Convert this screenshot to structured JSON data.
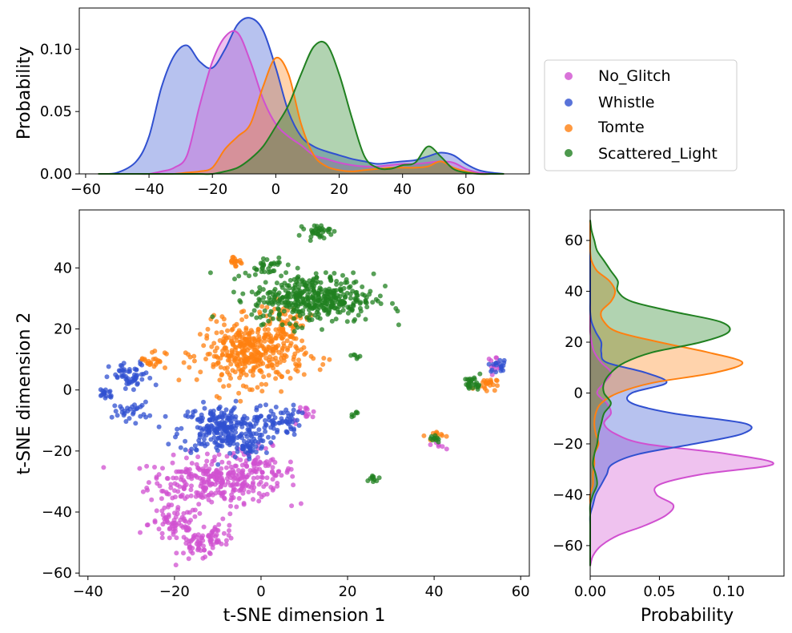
{
  "chart_data": [
    {
      "panel": "scatter",
      "type": "scatter",
      "xlabel": "t-SNE dimension 1",
      "ylabel": "t-SNE dimension 2",
      "xlim": [
        -42,
        62
      ],
      "ylim": [
        -61,
        59
      ],
      "xticks": [
        -40,
        -20,
        0,
        20,
        40,
        60
      ],
      "yticks": [
        -60,
        -40,
        -20,
        0,
        20,
        40
      ],
      "series": [
        {
          "name": "No_Glitch",
          "color": "#d050d0",
          "clusters": [
            {
              "cx": -12,
              "cy": -30,
              "sx": 7,
              "sy": 4,
              "n": 240
            },
            {
              "cx": -2,
              "cy": -27,
              "sx": 5,
              "sy": 4,
              "n": 110
            },
            {
              "cx": -20,
              "cy": -44,
              "sx": 3,
              "sy": 3,
              "n": 70
            },
            {
              "cx": -14,
              "cy": -51,
              "sx": 2.5,
              "sy": 2.5,
              "n": 50
            },
            {
              "cx": -10,
              "cy": -47,
              "sx": 2,
              "sy": 2,
              "n": 30
            },
            {
              "cx": 10,
              "cy": -8,
              "sx": 1.5,
              "sy": 1.5,
              "n": 15
            },
            {
              "cx": 54,
              "cy": 9,
              "sx": 1,
              "sy": 1,
              "n": 12
            },
            {
              "cx": 41,
              "cy": -18,
              "sx": 0.8,
              "sy": 0.8,
              "n": 6
            }
          ]
        },
        {
          "name": "Whistle",
          "color": "#3050d0",
          "clusters": [
            {
              "cx": -9,
              "cy": -13,
              "sx": 5,
              "sy": 4,
              "n": 250
            },
            {
              "cx": 4,
              "cy": -10,
              "sx": 2.5,
              "sy": 2.5,
              "n": 60
            },
            {
              "cx": -30,
              "cy": 4,
              "sx": 2.5,
              "sy": 2.5,
              "n": 55
            },
            {
              "cx": -36,
              "cy": -1,
              "sx": 1,
              "sy": 1,
              "n": 18
            },
            {
              "cx": -30,
              "cy": -7,
              "sx": 2,
              "sy": 1.5,
              "n": 30
            },
            {
              "cx": 55,
              "cy": 8,
              "sx": 1.2,
              "sy": 1,
              "n": 18
            },
            {
              "cx": -3,
              "cy": -19,
              "sx": 2,
              "sy": 1.5,
              "n": 30
            }
          ]
        },
        {
          "name": "Tomte",
          "color": "#ff8010",
          "clusters": [
            {
              "cx": -2,
              "cy": 12,
              "sx": 6,
              "sy": 5,
              "n": 380
            },
            {
              "cx": 5,
              "cy": 22,
              "sx": 3,
              "sy": 3,
              "n": 60
            },
            {
              "cx": -25,
              "cy": 10,
              "sx": 1.5,
              "sy": 1.5,
              "n": 22
            },
            {
              "cx": -6,
              "cy": 42,
              "sx": 1,
              "sy": 1,
              "n": 16
            },
            {
              "cx": 52,
              "cy": 2,
              "sx": 1.2,
              "sy": 1,
              "n": 22
            },
            {
              "cx": 40,
              "cy": -15,
              "sx": 1,
              "sy": 0.8,
              "n": 12
            }
          ]
        },
        {
          "name": "Scattered_Light",
          "color": "#208020",
          "clusters": [
            {
              "cx": 12,
              "cy": 30,
              "sx": 7,
              "sy": 4,
              "n": 420
            },
            {
              "cx": 1,
              "cy": 41,
              "sx": 2.5,
              "sy": 1.5,
              "n": 30
            },
            {
              "cx": 13,
              "cy": 52,
              "sx": 1.5,
              "sy": 1,
              "n": 35
            },
            {
              "cx": 49,
              "cy": 2,
              "sx": 1,
              "sy": 1.2,
              "n": 28
            },
            {
              "cx": 26,
              "cy": -29,
              "sx": 0.7,
              "sy": 0.7,
              "n": 10
            },
            {
              "cx": 40,
              "cy": -16,
              "sx": 0.8,
              "sy": 0.7,
              "n": 10
            },
            {
              "cx": 22,
              "cy": -8,
              "sx": 0.5,
              "sy": 0.5,
              "n": 6
            },
            {
              "cx": 22,
              "cy": 11,
              "sx": 0.5,
              "sy": 1,
              "n": 6
            }
          ]
        }
      ]
    },
    {
      "panel": "top-density",
      "type": "area",
      "ylabel": "Probability",
      "xlim": [
        -62,
        80
      ],
      "ylim": [
        0,
        0.133
      ],
      "xticks": [
        -60,
        -40,
        -20,
        0,
        20,
        40,
        60
      ],
      "yticks": [
        0.0,
        0.05,
        0.1
      ],
      "ytick_labels": [
        "0.00",
        "0.05",
        "0.10"
      ],
      "x": [
        -56,
        -50,
        -44,
        -40,
        -36,
        -32,
        -28,
        -24,
        -20,
        -16,
        -12,
        -8,
        -4,
        0,
        4,
        8,
        12,
        16,
        20,
        24,
        28,
        32,
        36,
        40,
        44,
        48,
        52,
        56,
        60,
        64,
        68,
        72
      ],
      "series": [
        {
          "name": "Whistle",
          "color": "#3050d0",
          "values": [
            0,
            0.001,
            0.01,
            0.03,
            0.07,
            0.095,
            0.103,
            0.09,
            0.085,
            0.1,
            0.12,
            0.125,
            0.115,
            0.085,
            0.05,
            0.03,
            0.022,
            0.018,
            0.015,
            0.012,
            0.01,
            0.008,
            0.009,
            0.01,
            0.011,
            0.014,
            0.017,
            0.015,
            0.008,
            0.003,
            0.001,
            0
          ]
        },
        {
          "name": "No_Glitch",
          "color": "#d050d0",
          "values": [
            0,
            0,
            0,
            0,
            0.002,
            0.005,
            0.015,
            0.055,
            0.09,
            0.11,
            0.113,
            0.09,
            0.06,
            0.04,
            0.03,
            0.023,
            0.015,
            0.012,
            0.009,
            0.007,
            0.006,
            0.006,
            0.007,
            0.008,
            0.008,
            0.009,
            0.01,
            0.009,
            0.004,
            0.001,
            0,
            0
          ]
        },
        {
          "name": "Tomte",
          "color": "#ff8010",
          "values": [
            0,
            0,
            0,
            0,
            0,
            0,
            0.001,
            0.002,
            0.005,
            0.02,
            0.03,
            0.04,
            0.07,
            0.093,
            0.08,
            0.04,
            0.015,
            0.006,
            0.003,
            0.002,
            0.003,
            0.004,
            0.005,
            0.005,
            0.005,
            0.006,
            0.01,
            0.005,
            0.002,
            0,
            0,
            0
          ]
        },
        {
          "name": "Scattered_Light",
          "color": "#208020",
          "values": [
            0,
            0,
            0,
            0,
            0,
            0,
            0,
            0,
            0,
            0.002,
            0.005,
            0.012,
            0.022,
            0.038,
            0.055,
            0.08,
            0.102,
            0.104,
            0.08,
            0.045,
            0.014,
            0.005,
            0.004,
            0.007,
            0.009,
            0.022,
            0.014,
            0.004,
            0.001,
            0,
            0,
            0
          ]
        }
      ]
    },
    {
      "panel": "right-density",
      "type": "area",
      "orientation": "horizontal",
      "xlabel": "Probability",
      "xlim": [
        0,
        0.14
      ],
      "ylim": [
        -72,
        72
      ],
      "xticks": [
        0.0,
        0.05,
        0.1
      ],
      "xtick_labels": [
        "0.00",
        "0.05",
        "0.10"
      ],
      "yticks": [
        -60,
        -40,
        -20,
        0,
        20,
        40,
        60
      ],
      "y": [
        -68,
        -64,
        -60,
        -56,
        -52,
        -48,
        -44,
        -40,
        -36,
        -32,
        -28,
        -24,
        -20,
        -16,
        -12,
        -8,
        -4,
        0,
        4,
        8,
        12,
        16,
        20,
        24,
        28,
        32,
        36,
        40,
        44,
        48,
        52,
        56,
        60,
        64,
        68
      ],
      "series": [
        {
          "name": "No_Glitch",
          "color": "#d050d0",
          "values": [
            0,
            0.002,
            0.008,
            0.02,
            0.04,
            0.055,
            0.06,
            0.048,
            0.05,
            0.08,
            0.132,
            0.1,
            0.04,
            0.018,
            0.01,
            0.015,
            0.012,
            0.005,
            0.01,
            0.015,
            0.008,
            0.003,
            0.001,
            0,
            0,
            0,
            0,
            0,
            0,
            0,
            0,
            0,
            0,
            0,
            0
          ]
        },
        {
          "name": "Whistle",
          "color": "#3050d0",
          "values": [
            0,
            0,
            0,
            0,
            0,
            0,
            0.002,
            0.004,
            0.008,
            0.012,
            0.016,
            0.035,
            0.075,
            0.11,
            0.112,
            0.06,
            0.03,
            0.03,
            0.055,
            0.04,
            0.012,
            0.008,
            0.008,
            0.004,
            0.001,
            0,
            0,
            0,
            0,
            0,
            0,
            0,
            0,
            0,
            0
          ]
        },
        {
          "name": "Tomte",
          "color": "#ff8010",
          "values": [
            0,
            0,
            0,
            0,
            0,
            0,
            0,
            0,
            0.002,
            0.002,
            0.003,
            0.003,
            0.006,
            0.004,
            0.003,
            0.004,
            0.008,
            0.02,
            0.045,
            0.09,
            0.11,
            0.085,
            0.05,
            0.02,
            0.01,
            0.008,
            0.015,
            0.018,
            0.014,
            0.005,
            0.001,
            0,
            0,
            0,
            0
          ]
        },
        {
          "name": "Scattered_Light",
          "color": "#208020",
          "values": [
            0,
            0,
            0,
            0,
            0,
            0,
            0,
            0.002,
            0.005,
            0.004,
            0.002,
            0.003,
            0.005,
            0.006,
            0.008,
            0.01,
            0.015,
            0.01,
            0.01,
            0.015,
            0.025,
            0.045,
            0.08,
            0.1,
            0.094,
            0.06,
            0.03,
            0.02,
            0.02,
            0.015,
            0.01,
            0.005,
            0.003,
            0.001,
            0
          ]
        }
      ]
    }
  ],
  "legend": {
    "placement": "right-middle",
    "items": [
      {
        "label": "No_Glitch",
        "color": "#d050d0"
      },
      {
        "label": "Whistle",
        "color": "#3050d0"
      },
      {
        "label": "Tomte",
        "color": "#ff8010"
      },
      {
        "label": "Scattered_Light",
        "color": "#208020"
      }
    ]
  }
}
